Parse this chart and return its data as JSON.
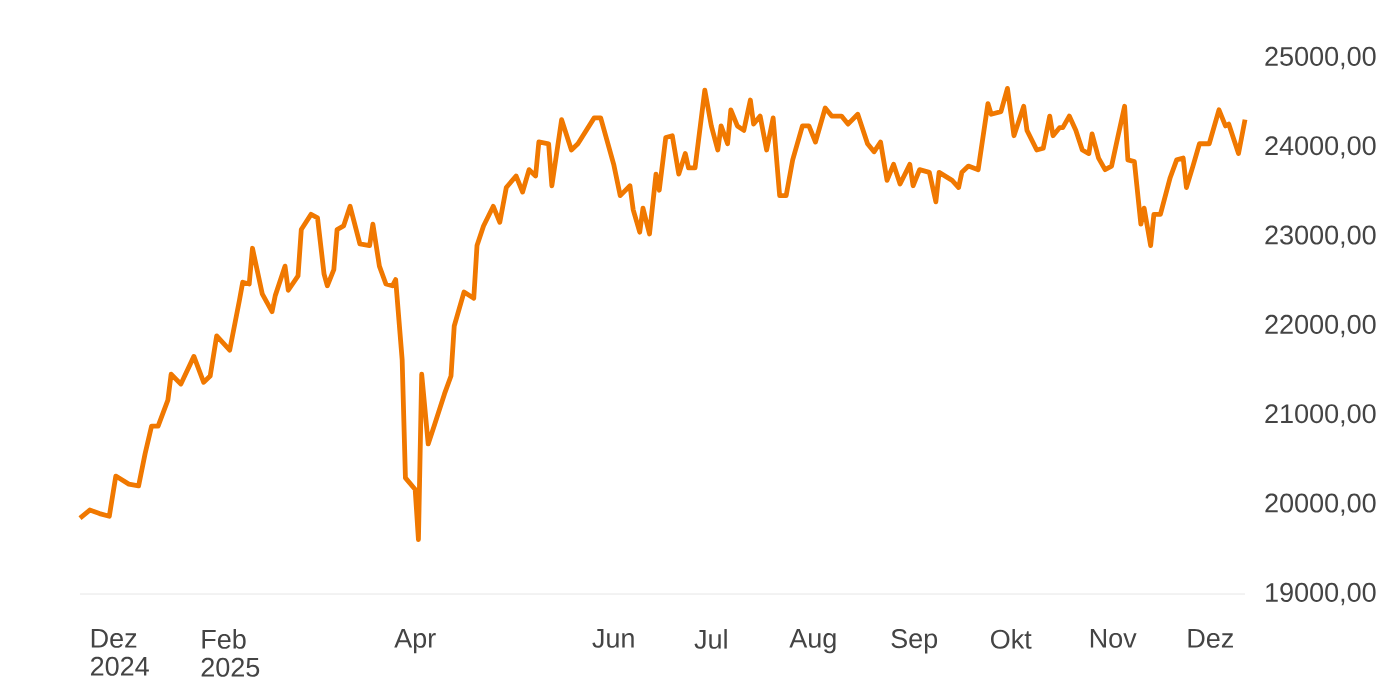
{
  "chart_data": {
    "type": "line",
    "color": "#f07800",
    "xlim": [
      "2024-12-19",
      "2025-12-12"
    ],
    "ylim": [
      19000,
      25000
    ],
    "xticks": [
      {
        "value": "2024-12-29",
        "label": "Dez 2024"
      },
      {
        "value": "2025-02-01",
        "label": "Feb 2025"
      },
      {
        "value": "2025-04-01",
        "label": "Apr"
      },
      {
        "value": "2025-06-01",
        "label": "Jun"
      },
      {
        "value": "2025-07-01",
        "label": "Jul"
      },
      {
        "value": "2025-08-01",
        "label": "Aug"
      },
      {
        "value": "2025-09-01",
        "label": "Sep"
      },
      {
        "value": "2025-10-01",
        "label": "Okt"
      },
      {
        "value": "2025-11-01",
        "label": "Nov"
      },
      {
        "value": "2025-12-01",
        "label": "Dez"
      }
    ],
    "yticks": [
      {
        "value": 19000,
        "label": "19000,00"
      },
      {
        "value": 20000,
        "label": "20000,00"
      },
      {
        "value": 21000,
        "label": "21000,00"
      },
      {
        "value": 22000,
        "label": "22000,00"
      },
      {
        "value": 23000,
        "label": "23000,00"
      },
      {
        "value": 24000,
        "label": "24000,00"
      },
      {
        "value": 25000,
        "label": "25000,00"
      }
    ],
    "x": [
      "2024-12-19",
      "2024-12-22",
      "2024-12-25",
      "2024-12-28",
      "2024-12-30",
      "2025-01-03",
      "2025-01-06",
      "2025-01-08",
      "2025-01-10",
      "2025-01-12",
      "2025-01-15",
      "2025-01-16",
      "2025-01-19",
      "2025-01-23",
      "2025-01-26",
      "2025-01-28",
      "2025-01-30",
      "2025-02-03",
      "2025-02-06",
      "2025-02-07",
      "2025-02-09",
      "2025-02-10",
      "2025-02-13",
      "2025-02-16",
      "2025-02-17",
      "2025-02-20",
      "2025-02-21",
      "2025-02-24",
      "2025-02-25",
      "2025-02-28",
      "2025-03-02",
      "2025-03-04",
      "2025-03-05",
      "2025-03-07",
      "2025-03-08",
      "2025-03-10",
      "2025-03-12",
      "2025-03-15",
      "2025-03-18",
      "2025-03-19",
      "2025-03-21",
      "2025-03-23",
      "2025-03-25",
      "2025-03-26",
      "2025-03-28",
      "2025-03-29",
      "2025-04-01",
      "2025-04-02",
      "2025-04-03",
      "2025-04-05",
      "2025-04-07",
      "2025-04-10",
      "2025-04-12",
      "2025-04-13",
      "2025-04-16",
      "2025-04-19",
      "2025-04-20",
      "2025-04-22",
      "2025-04-25",
      "2025-04-27",
      "2025-04-29",
      "2025-05-02",
      "2025-05-04",
      "2025-05-06",
      "2025-05-08",
      "2025-05-09",
      "2025-05-12",
      "2025-05-13",
      "2025-05-16",
      "2025-05-19",
      "2025-05-21",
      "2025-05-26",
      "2025-05-28",
      "2025-06-01",
      "2025-06-03",
      "2025-06-06",
      "2025-06-07",
      "2025-06-09",
      "2025-06-10",
      "2025-06-12",
      "2025-06-14",
      "2025-06-15",
      "2025-06-17",
      "2025-06-19",
      "2025-06-21",
      "2025-06-23",
      "2025-06-24",
      "2025-06-26",
      "2025-06-29",
      "2025-07-01",
      "2025-07-03",
      "2025-07-04",
      "2025-07-06",
      "2025-07-07",
      "2025-07-09",
      "2025-07-11",
      "2025-07-13",
      "2025-07-14",
      "2025-07-16",
      "2025-07-18",
      "2025-07-20",
      "2025-07-22",
      "2025-07-24",
      "2025-07-26",
      "2025-07-29",
      "2025-07-31",
      "2025-08-02",
      "2025-08-05",
      "2025-08-07",
      "2025-08-10",
      "2025-08-12",
      "2025-08-15",
      "2025-08-18",
      "2025-08-20",
      "2025-08-22",
      "2025-08-24",
      "2025-08-26",
      "2025-08-28",
      "2025-08-31",
      "2025-09-01",
      "2025-09-03",
      "2025-09-06",
      "2025-09-08",
      "2025-09-09",
      "2025-09-13",
      "2025-09-15",
      "2025-09-16",
      "2025-09-18",
      "2025-09-21",
      "2025-09-24",
      "2025-09-25",
      "2025-09-28",
      "2025-09-30",
      "2025-10-02",
      "2025-10-05",
      "2025-10-06",
      "2025-10-09",
      "2025-10-11",
      "2025-10-13",
      "2025-10-14",
      "2025-10-16",
      "2025-10-17",
      "2025-10-19",
      "2025-10-21",
      "2025-10-23",
      "2025-10-25",
      "2025-10-26",
      "2025-10-28",
      "2025-10-30",
      "2025-11-01",
      "2025-11-03",
      "2025-11-05",
      "2025-11-06",
      "2025-11-08",
      "2025-11-10",
      "2025-11-11",
      "2025-11-13",
      "2025-11-14",
      "2025-11-16",
      "2025-11-19",
      "2025-11-21",
      "2025-11-23",
      "2025-11-24",
      "2025-11-26",
      "2025-11-28",
      "2025-12-01",
      "2025-12-04",
      "2025-12-06",
      "2025-12-07",
      "2025-12-10",
      "2025-12-12"
    ],
    "values": [
      19850,
      19940,
      19900,
      19870,
      20320,
      20230,
      20210,
      20570,
      20880,
      20880,
      21170,
      21460,
      21350,
      21660,
      21370,
      21440,
      21890,
      21730,
      22290,
      22490,
      22470,
      22870,
      22360,
      22160,
      22340,
      22670,
      22400,
      22560,
      23080,
      23250,
      23210,
      22580,
      22450,
      22630,
      23080,
      23120,
      23340,
      22920,
      22900,
      23140,
      22670,
      22470,
      22450,
      22520,
      21620,
      20300,
      20170,
      19610,
      21460,
      20680,
      20900,
      21240,
      21440,
      22000,
      22380,
      22310,
      22900,
      23120,
      23340,
      23160,
      23550,
      23680,
      23500,
      23750,
      23680,
      24060,
      24040,
      23570,
      24310,
      23970,
      24040,
      24330,
      24330,
      23810,
      23460,
      23570,
      23300,
      23050,
      23320,
      23030,
      23700,
      23520,
      24110,
      24130,
      23700,
      23930,
      23770,
      23770,
      24640,
      24240,
      23970,
      24240,
      24040,
      24420,
      24240,
      24190,
      24530,
      24260,
      24350,
      23970,
      24330,
      23460,
      23460,
      23860,
      24240,
      24240,
      24060,
      24440,
      24350,
      24350,
      24260,
      24370,
      24040,
      23950,
      24060,
      23630,
      23810,
      23590,
      23810,
      23570,
      23750,
      23720,
      23390,
      23720,
      23630,
      23550,
      23720,
      23790,
      23750,
      24490,
      24370,
      24400,
      24660,
      24130,
      24460,
      24190,
      23970,
      23990,
      24350,
      24130,
      24220,
      24220,
      24350,
      24190,
      23970,
      23930,
      24150,
      23880,
      23750,
      23790,
      24130,
      24460,
      23860,
      23840,
      23140,
      23320,
      22900,
      23250,
      23250,
      23660,
      23860,
      23880,
      23550,
      23790,
      24040,
      24040,
      24420,
      24240,
      24260,
      23930,
      24310
    ]
  }
}
